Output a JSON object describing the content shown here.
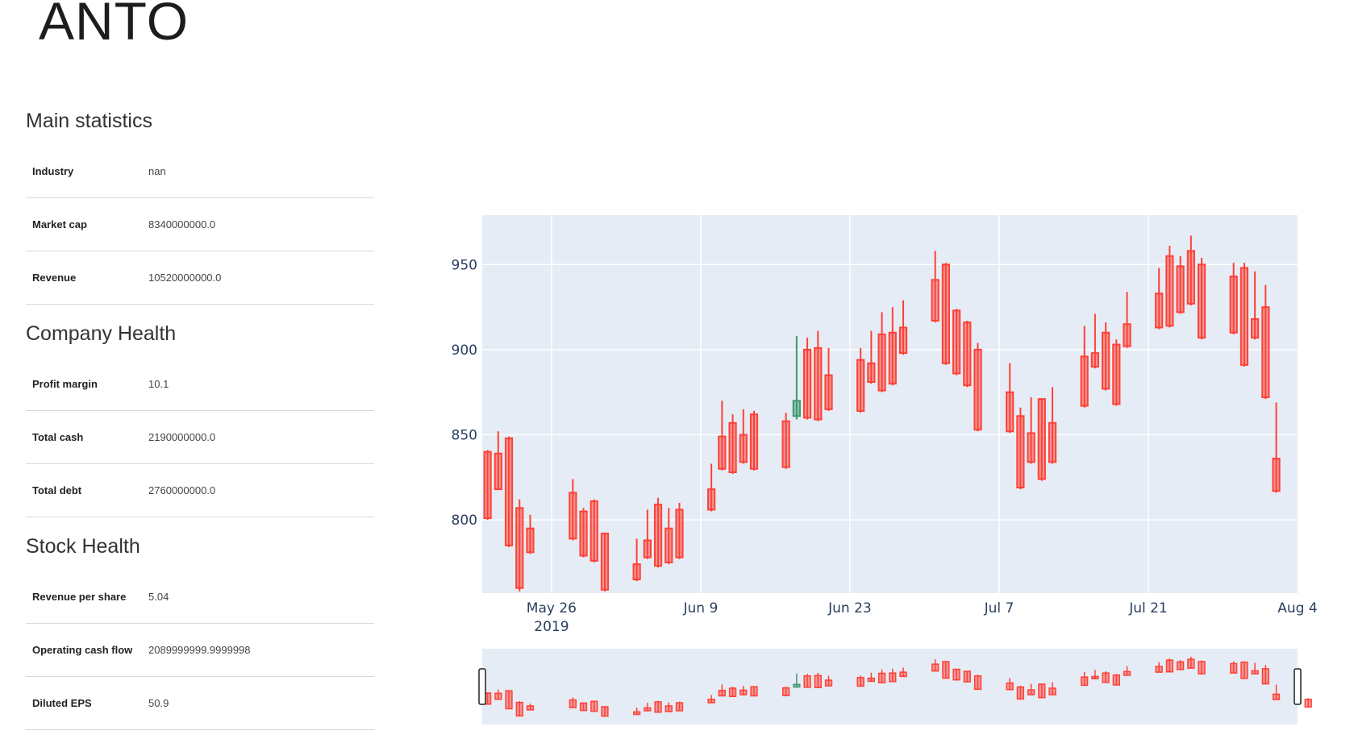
{
  "ticker": "ANTO",
  "sections": [
    {
      "title": "Main statistics",
      "rows": [
        {
          "label": "Industry",
          "value": "nan"
        },
        {
          "label": "Market cap",
          "value": "8340000000.0"
        },
        {
          "label": "Revenue",
          "value": "10520000000.0"
        }
      ]
    },
    {
      "title": "Company Health",
      "rows": [
        {
          "label": "Profit margin",
          "value": "10.1"
        },
        {
          "label": "Total cash",
          "value": "2190000000.0"
        },
        {
          "label": "Total debt",
          "value": "2760000000.0"
        }
      ]
    },
    {
      "title": "Stock Health",
      "rows": [
        {
          "label": "Revenue per share",
          "value": "5.04"
        },
        {
          "label": "Operating cash flow",
          "value": "2089999999.9999998"
        },
        {
          "label": "Diluted EPS",
          "value": "50.9"
        }
      ]
    }
  ],
  "chart_data": {
    "type": "candlestick",
    "x_ticks": [
      {
        "date": "2019-05-26",
        "label": "May 26",
        "sublabel": "2019"
      },
      {
        "date": "2019-06-09",
        "label": "Jun 9"
      },
      {
        "date": "2019-06-23",
        "label": "Jun 23"
      },
      {
        "date": "2019-07-07",
        "label": "Jul 7"
      },
      {
        "date": "2019-07-21",
        "label": "Jul 21"
      },
      {
        "date": "2019-08-04",
        "label": "Aug 4"
      }
    ],
    "y_ticks": [
      800,
      850,
      900,
      950
    ],
    "ylim": [
      757,
      979
    ],
    "xlim": [
      "2019-05-19T12:00",
      "2019-08-04T00:00"
    ],
    "colors": {
      "increasing": "#3d9970",
      "decreasing": "#ff4136",
      "plot_bg": "#e5ecf6"
    },
    "rangeslider": true,
    "candles": [
      {
        "d": "2019-05-20",
        "o": 840,
        "h": 841,
        "l": 800,
        "c": 801
      },
      {
        "d": "2019-05-21",
        "o": 839,
        "h": 852,
        "l": 818,
        "c": 818
      },
      {
        "d": "2019-05-22",
        "o": 848,
        "h": 849,
        "l": 784,
        "c": 785
      },
      {
        "d": "2019-05-23",
        "o": 807,
        "h": 812,
        "l": 758,
        "c": 760
      },
      {
        "d": "2019-05-24",
        "o": 795,
        "h": 803,
        "l": 780,
        "c": 781
      },
      {
        "d": "2019-05-28",
        "o": 816,
        "h": 824,
        "l": 788,
        "c": 789
      },
      {
        "d": "2019-05-29",
        "o": 805,
        "h": 807,
        "l": 778,
        "c": 779
      },
      {
        "d": "2019-05-30",
        "o": 811,
        "h": 812,
        "l": 775,
        "c": 776
      },
      {
        "d": "2019-05-31",
        "o": 792,
        "h": 792,
        "l": 758,
        "c": 759
      },
      {
        "d": "2019-06-03",
        "o": 774,
        "h": 789,
        "l": 764,
        "c": 765
      },
      {
        "d": "2019-06-04",
        "o": 788,
        "h": 806,
        "l": 777,
        "c": 778
      },
      {
        "d": "2019-06-05",
        "o": 809,
        "h": 813,
        "l": 772,
        "c": 773
      },
      {
        "d": "2019-06-06",
        "o": 795,
        "h": 807,
        "l": 774,
        "c": 775
      },
      {
        "d": "2019-06-07",
        "o": 806,
        "h": 810,
        "l": 777,
        "c": 778
      },
      {
        "d": "2019-06-10",
        "o": 818,
        "h": 833,
        "l": 805,
        "c": 806
      },
      {
        "d": "2019-06-11",
        "o": 849,
        "h": 870,
        "l": 829,
        "c": 830
      },
      {
        "d": "2019-06-12",
        "o": 857,
        "h": 862,
        "l": 827,
        "c": 828
      },
      {
        "d": "2019-06-13",
        "o": 850,
        "h": 865,
        "l": 833,
        "c": 834
      },
      {
        "d": "2019-06-14",
        "o": 862,
        "h": 864,
        "l": 829,
        "c": 830
      },
      {
        "d": "2019-06-17",
        "o": 858,
        "h": 863,
        "l": 830,
        "c": 831
      },
      {
        "d": "2019-06-18",
        "o": 861,
        "h": 908,
        "l": 859,
        "c": 870
      },
      {
        "d": "2019-06-19",
        "o": 900,
        "h": 907,
        "l": 859,
        "c": 860
      },
      {
        "d": "2019-06-20",
        "o": 901,
        "h": 911,
        "l": 858,
        "c": 859
      },
      {
        "d": "2019-06-21",
        "o": 885,
        "h": 901,
        "l": 864,
        "c": 865
      },
      {
        "d": "2019-06-24",
        "o": 894,
        "h": 901,
        "l": 863,
        "c": 864
      },
      {
        "d": "2019-06-25",
        "o": 892,
        "h": 911,
        "l": 880,
        "c": 881
      },
      {
        "d": "2019-06-26",
        "o": 909,
        "h": 922,
        "l": 875,
        "c": 876
      },
      {
        "d": "2019-06-27",
        "o": 910,
        "h": 925,
        "l": 879,
        "c": 880
      },
      {
        "d": "2019-06-28",
        "o": 913,
        "h": 929,
        "l": 897,
        "c": 898
      },
      {
        "d": "2019-07-01",
        "o": 941,
        "h": 958,
        "l": 916,
        "c": 917
      },
      {
        "d": "2019-07-02",
        "o": 950,
        "h": 951,
        "l": 891,
        "c": 892
      },
      {
        "d": "2019-07-03",
        "o": 923,
        "h": 924,
        "l": 885,
        "c": 886
      },
      {
        "d": "2019-07-04",
        "o": 916,
        "h": 917,
        "l": 878,
        "c": 879
      },
      {
        "d": "2019-07-05",
        "o": 900,
        "h": 904,
        "l": 852,
        "c": 853
      },
      {
        "d": "2019-07-08",
        "o": 875,
        "h": 892,
        "l": 851,
        "c": 852
      },
      {
        "d": "2019-07-09",
        "o": 861,
        "h": 866,
        "l": 818,
        "c": 819
      },
      {
        "d": "2019-07-10",
        "o": 851,
        "h": 872,
        "l": 833,
        "c": 834
      },
      {
        "d": "2019-07-11",
        "o": 871,
        "h": 871,
        "l": 823,
        "c": 824
      },
      {
        "d": "2019-07-12",
        "o": 857,
        "h": 878,
        "l": 833,
        "c": 834
      },
      {
        "d": "2019-07-15",
        "o": 896,
        "h": 914,
        "l": 866,
        "c": 867
      },
      {
        "d": "2019-07-16",
        "o": 898,
        "h": 921,
        "l": 889,
        "c": 890
      },
      {
        "d": "2019-07-17",
        "o": 910,
        "h": 916,
        "l": 876,
        "c": 877
      },
      {
        "d": "2019-07-18",
        "o": 903,
        "h": 906,
        "l": 867,
        "c": 868
      },
      {
        "d": "2019-07-19",
        "o": 915,
        "h": 934,
        "l": 901,
        "c": 902
      },
      {
        "d": "2019-07-22",
        "o": 933,
        "h": 948,
        "l": 912,
        "c": 913
      },
      {
        "d": "2019-07-23",
        "o": 955,
        "h": 961,
        "l": 913,
        "c": 914
      },
      {
        "d": "2019-07-24",
        "o": 949,
        "h": 955,
        "l": 921,
        "c": 922
      },
      {
        "d": "2019-07-25",
        "o": 958,
        "h": 967,
        "l": 926,
        "c": 927
      },
      {
        "d": "2019-07-26",
        "o": 950,
        "h": 954,
        "l": 906,
        "c": 907
      },
      {
        "d": "2019-07-29",
        "o": 943,
        "h": 951,
        "l": 909,
        "c": 910
      },
      {
        "d": "2019-07-30",
        "o": 948,
        "h": 951,
        "l": 890,
        "c": 891
      },
      {
        "d": "2019-07-31",
        "o": 918,
        "h": 946,
        "l": 906,
        "c": 907
      },
      {
        "d": "2019-08-01",
        "o": 925,
        "h": 938,
        "l": 871,
        "c": 872
      },
      {
        "d": "2019-08-02",
        "o": 836,
        "h": 869,
        "l": 816,
        "c": 817
      },
      {
        "d": "2019-08-05",
        "o": 818,
        "h": 822,
        "l": 790,
        "c": 791
      }
    ]
  }
}
